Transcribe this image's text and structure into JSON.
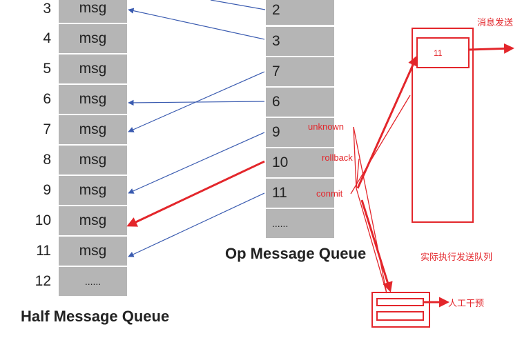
{
  "half_queue": {
    "title": "Half Message Queue",
    "rows": [
      {
        "num": "3",
        "label": "msg"
      },
      {
        "num": "4",
        "label": "msg"
      },
      {
        "num": "5",
        "label": "msg"
      },
      {
        "num": "6",
        "label": "msg"
      },
      {
        "num": "7",
        "label": "msg"
      },
      {
        "num": "8",
        "label": "msg"
      },
      {
        "num": "9",
        "label": "msg"
      },
      {
        "num": "10",
        "label": "msg"
      },
      {
        "num": "11",
        "label": "msg"
      },
      {
        "num": "12",
        "label": "......"
      }
    ]
  },
  "op_queue": {
    "title": "Op Message Queue",
    "items": [
      "2",
      "3",
      "7",
      "6",
      "9",
      "10",
      "11",
      "......"
    ]
  },
  "status_labels": {
    "unknown": "unknown",
    "rollback": "rollback",
    "commit": "conmit"
  },
  "send_queue": {
    "title": "实际执行发送队列",
    "item": "11",
    "send_label": "消息发送"
  },
  "manual": {
    "label": "人工干预"
  },
  "colors": {
    "cell_gray": "#b5b5b5",
    "blue_arrow": "#3a5bb0",
    "red_accent": "#e3262b"
  }
}
